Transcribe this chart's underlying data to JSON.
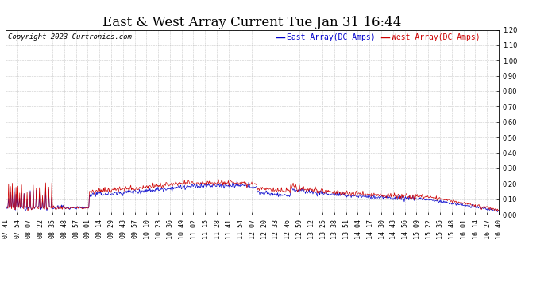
{
  "title": "East & West Array Current Tue Jan 31 16:44",
  "copyright": "Copyright 2023 Curtronics.com",
  "east_label": "East Array(DC Amps)",
  "west_label": "West Array(DC Amps)",
  "east_color": "#0000cc",
  "west_color": "#cc0000",
  "background_color": "#ffffff",
  "plot_bg_color": "#ffffff",
  "grid_color": "#bbbbbb",
  "ylim": [
    0.0,
    1.2
  ],
  "yticks": [
    0.0,
    0.1,
    0.2,
    0.3,
    0.4,
    0.5,
    0.6,
    0.7,
    0.8,
    0.9,
    1.0,
    1.1,
    1.2
  ],
  "xtick_labels": [
    "07:41",
    "07:54",
    "08:07",
    "08:22",
    "08:35",
    "08:48",
    "08:57",
    "09:01",
    "09:14",
    "09:29",
    "09:43",
    "09:57",
    "10:10",
    "10:23",
    "10:36",
    "10:49",
    "11:02",
    "11:15",
    "11:28",
    "11:41",
    "11:54",
    "12:07",
    "12:20",
    "12:33",
    "12:46",
    "12:59",
    "13:12",
    "13:25",
    "13:38",
    "13:51",
    "14:04",
    "14:17",
    "14:30",
    "14:43",
    "14:56",
    "15:09",
    "15:22",
    "15:35",
    "15:48",
    "16:01",
    "16:14",
    "16:27",
    "16:40"
  ],
  "title_fontsize": 12,
  "copyright_fontsize": 6.5,
  "legend_fontsize": 7,
  "tick_fontsize": 6,
  "figwidth": 6.9,
  "figheight": 3.75,
  "dpi": 100
}
